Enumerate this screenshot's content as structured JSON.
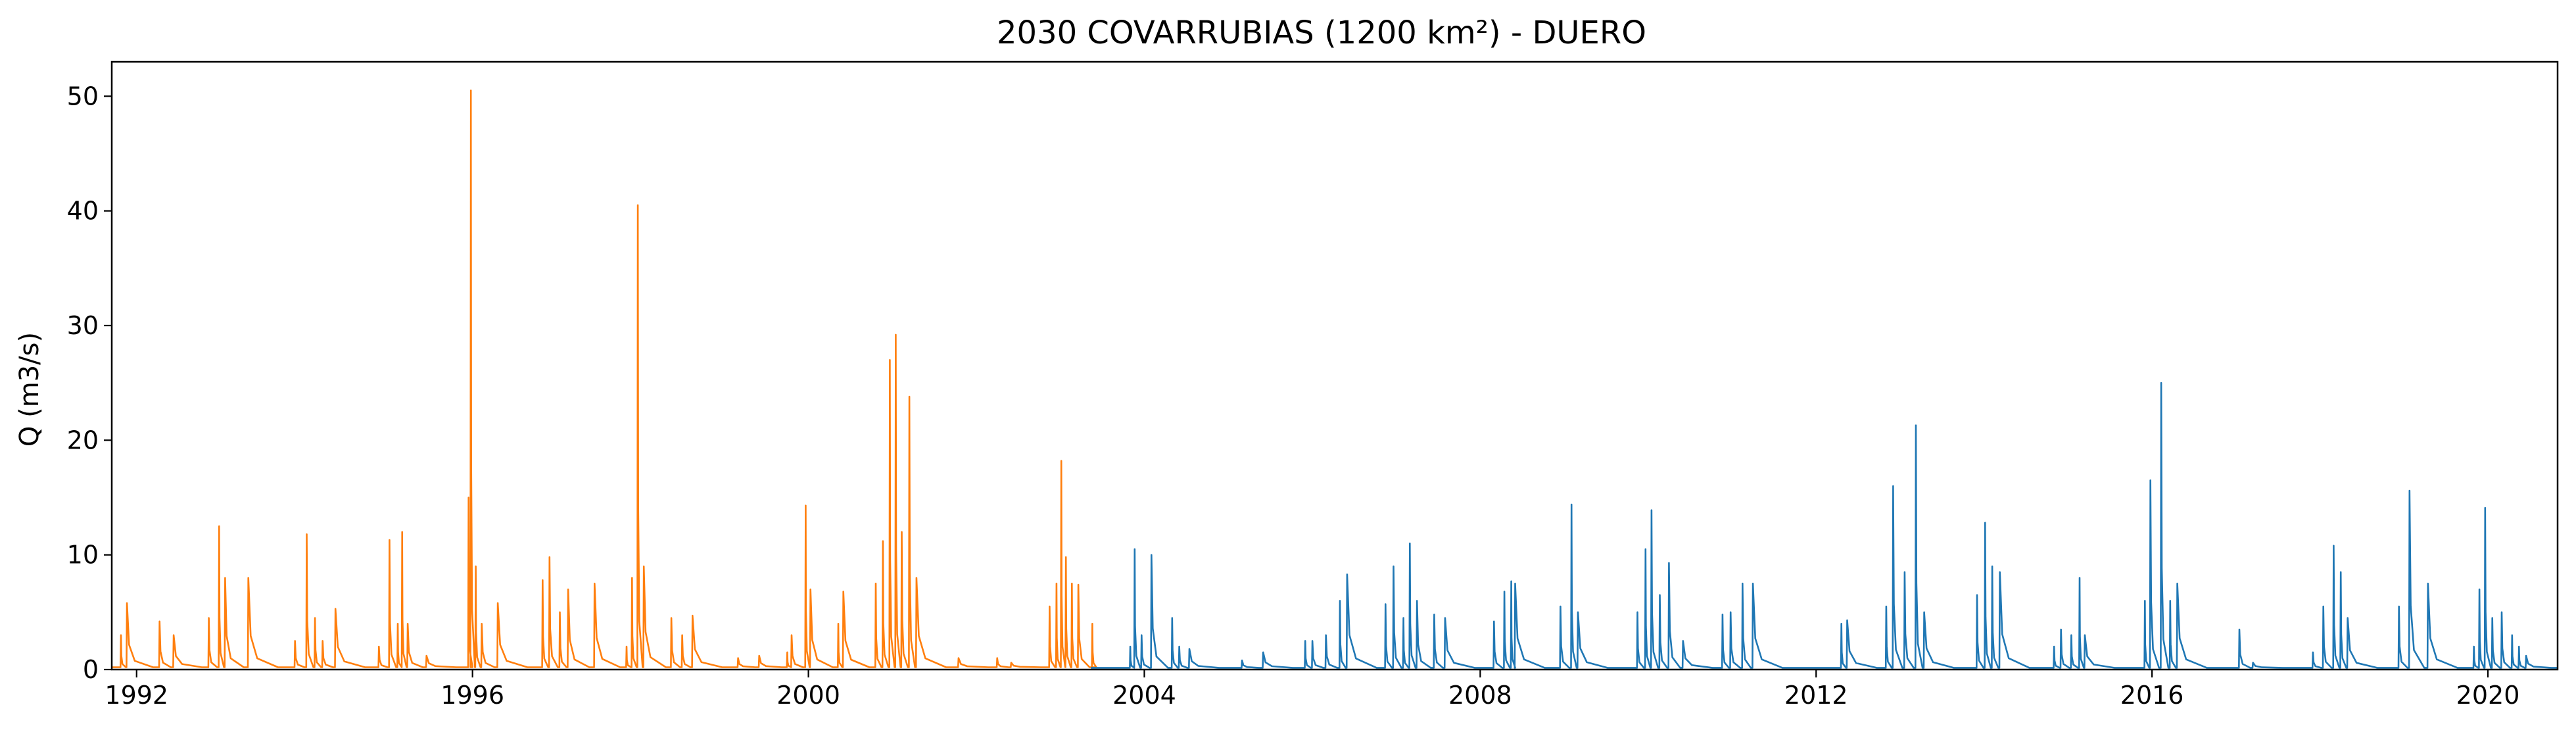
{
  "chart_data": {
    "type": "line",
    "title": "2030 COVARRUBIAS (1200 km²) - DUERO",
    "xlabel": "",
    "ylabel": "Q (m3/s)",
    "x_type": "date",
    "xlim": [
      "1991-09-15",
      "2020-10-30"
    ],
    "ylim": [
      0,
      53
    ],
    "grid": false,
    "legend": "none",
    "x_ticks": [
      {
        "value": "1992-01-01",
        "label": "1992"
      },
      {
        "value": "1996-01-01",
        "label": "1996"
      },
      {
        "value": "2000-01-01",
        "label": "2000"
      },
      {
        "value": "2004-01-01",
        "label": "2004"
      },
      {
        "value": "2008-01-01",
        "label": "2008"
      },
      {
        "value": "2012-01-01",
        "label": "2012"
      },
      {
        "value": "2016-01-01",
        "label": "2016"
      },
      {
        "value": "2020-01-01",
        "label": "2020"
      }
    ],
    "y_ticks": [
      {
        "value": 0,
        "label": "0"
      },
      {
        "value": 10,
        "label": "10"
      },
      {
        "value": 20,
        "label": "20"
      },
      {
        "value": 30,
        "label": "30"
      },
      {
        "value": 40,
        "label": "40"
      },
      {
        "value": 50,
        "label": "50"
      }
    ],
    "series": [
      {
        "color": "#ff7f0e",
        "base": 0.2,
        "peaks": [
          [
            "1991-10-25",
            3.0
          ],
          [
            "1991-11-20",
            5.8
          ],
          [
            "1992-04-10",
            4.2
          ],
          [
            "1992-06-10",
            3.0
          ],
          [
            "1992-11-10",
            4.5
          ],
          [
            "1992-12-25",
            12.5
          ],
          [
            "1993-01-20",
            8.0
          ],
          [
            "1993-05-01",
            8.0
          ],
          [
            "1993-11-20",
            2.5
          ],
          [
            "1994-01-10",
            11.8
          ],
          [
            "1994-02-15",
            4.5
          ],
          [
            "1994-03-20",
            2.5
          ],
          [
            "1994-05-15",
            5.3
          ],
          [
            "1994-11-20",
            2.0
          ],
          [
            "1995-01-05",
            11.3
          ],
          [
            "1995-02-10",
            4.0
          ],
          [
            "1995-03-01",
            12.0
          ],
          [
            "1995-03-25",
            4.0
          ],
          [
            "1995-06-15",
            1.2
          ],
          [
            "1995-12-15",
            15.0
          ],
          [
            "1995-12-25",
            50.5
          ],
          [
            "1996-01-15",
            9.0
          ],
          [
            "1996-02-10",
            4.0
          ],
          [
            "1996-04-20",
            5.8
          ],
          [
            "1996-11-01",
            7.8
          ],
          [
            "1996-12-01",
            9.8
          ],
          [
            "1997-01-15",
            5.0
          ],
          [
            "1997-02-20",
            7.0
          ],
          [
            "1997-06-15",
            7.5
          ],
          [
            "1997-11-01",
            2.0
          ],
          [
            "1997-11-25",
            8.0
          ],
          [
            "1997-12-20",
            40.5
          ],
          [
            "1998-01-15",
            9.0
          ],
          [
            "1998-05-15",
            4.5
          ],
          [
            "1998-07-01",
            3.0
          ],
          [
            "1998-08-15",
            4.7
          ],
          [
            "1999-03-01",
            1.0
          ],
          [
            "1999-06-01",
            1.2
          ],
          [
            "1999-10-01",
            1.5
          ],
          [
            "1999-10-20",
            3.0
          ],
          [
            "1999-12-20",
            14.3
          ],
          [
            "2000-01-10",
            7.0
          ],
          [
            "2000-05-10",
            4.0
          ],
          [
            "2000-06-01",
            6.8
          ],
          [
            "2000-10-20",
            7.5
          ],
          [
            "2000-11-20",
            11.2
          ],
          [
            "2000-12-20",
            27.0
          ],
          [
            "2001-01-15",
            29.2
          ],
          [
            "2001-02-10",
            12.0
          ],
          [
            "2001-03-15",
            23.8
          ],
          [
            "2001-04-15",
            8.0
          ],
          [
            "2001-10-15",
            1.0
          ],
          [
            "2002-04-01",
            1.0
          ],
          [
            "2002-06-01",
            0.6
          ],
          [
            "2002-11-15",
            5.5
          ],
          [
            "2002-12-15",
            7.5
          ],
          [
            "2003-01-05",
            18.2
          ],
          [
            "2003-01-25",
            9.8
          ],
          [
            "2003-02-20",
            7.5
          ],
          [
            "2003-03-20",
            7.4
          ],
          [
            "2003-05-20",
            4.0
          ]
        ]
      },
      {
        "color": "#1f77b4",
        "base": 0.15,
        "peaks": [
          [
            "2003-11-01",
            2.0
          ],
          [
            "2003-11-20",
            10.5
          ],
          [
            "2003-12-20",
            3.0
          ],
          [
            "2004-02-01",
            10.0
          ],
          [
            "2004-05-01",
            4.5
          ],
          [
            "2004-06-01",
            2.0
          ],
          [
            "2004-07-15",
            1.8
          ],
          [
            "2005-03-01",
            0.8
          ],
          [
            "2005-06-01",
            1.5
          ],
          [
            "2005-12-01",
            2.5
          ],
          [
            "2006-01-01",
            2.5
          ],
          [
            "2006-03-01",
            3.0
          ],
          [
            "2006-05-01",
            6.0
          ],
          [
            "2006-06-01",
            8.3
          ],
          [
            "2006-11-15",
            5.7
          ],
          [
            "2006-12-20",
            9.0
          ],
          [
            "2007-02-01",
            4.5
          ],
          [
            "2007-03-01",
            11.0
          ],
          [
            "2007-04-01",
            6.0
          ],
          [
            "2007-06-15",
            4.8
          ],
          [
            "2007-08-01",
            4.5
          ],
          [
            "2008-03-01",
            4.2
          ],
          [
            "2008-04-15",
            6.8
          ],
          [
            "2008-05-15",
            7.7
          ],
          [
            "2008-06-01",
            7.5
          ],
          [
            "2008-12-15",
            5.5
          ],
          [
            "2009-02-01",
            14.4
          ],
          [
            "2009-03-01",
            5.0
          ],
          [
            "2009-11-15",
            5.0
          ],
          [
            "2009-12-20",
            10.5
          ],
          [
            "2010-01-15",
            13.9
          ],
          [
            "2010-02-20",
            6.5
          ],
          [
            "2010-04-01",
            9.3
          ],
          [
            "2010-06-01",
            2.5
          ],
          [
            "2010-11-20",
            4.8
          ],
          [
            "2010-12-25",
            5.0
          ],
          [
            "2011-02-15",
            7.5
          ],
          [
            "2011-04-01",
            7.5
          ],
          [
            "2012-04-20",
            4.0
          ],
          [
            "2012-05-15",
            4.3
          ],
          [
            "2012-11-01",
            5.5
          ],
          [
            "2012-12-01",
            16.0
          ],
          [
            "2013-01-20",
            8.5
          ],
          [
            "2013-03-10",
            21.3
          ],
          [
            "2013-04-15",
            5.0
          ],
          [
            "2013-12-01",
            6.5
          ],
          [
            "2014-01-05",
            12.8
          ],
          [
            "2014-02-05",
            9.0
          ],
          [
            "2014-03-10",
            8.5
          ],
          [
            "2014-11-01",
            2.0
          ],
          [
            "2014-12-01",
            3.5
          ],
          [
            "2015-01-15",
            3.0
          ],
          [
            "2015-02-20",
            8.0
          ],
          [
            "2015-03-15",
            3.0
          ],
          [
            "2015-12-01",
            6.0
          ],
          [
            "2015-12-25",
            16.5
          ],
          [
            "2016-02-10",
            25.0
          ],
          [
            "2016-03-20",
            6.0
          ],
          [
            "2016-04-20",
            7.5
          ],
          [
            "2017-01-15",
            3.5
          ],
          [
            "2017-03-15",
            0.6
          ],
          [
            "2017-12-01",
            1.5
          ],
          [
            "2018-01-15",
            5.5
          ],
          [
            "2018-03-01",
            10.8
          ],
          [
            "2018-04-01",
            8.5
          ],
          [
            "2018-05-01",
            4.5
          ],
          [
            "2018-12-10",
            5.5
          ],
          [
            "2019-01-25",
            15.6
          ],
          [
            "2019-04-15",
            7.5
          ],
          [
            "2019-11-01",
            2.0
          ],
          [
            "2019-11-25",
            7.0
          ],
          [
            "2019-12-20",
            14.1
          ],
          [
            "2020-01-20",
            4.5
          ],
          [
            "2020-03-01",
            5.0
          ],
          [
            "2020-04-15",
            3.0
          ],
          [
            "2020-05-15",
            2.0
          ],
          [
            "2020-06-15",
            1.2
          ]
        ]
      }
    ]
  }
}
